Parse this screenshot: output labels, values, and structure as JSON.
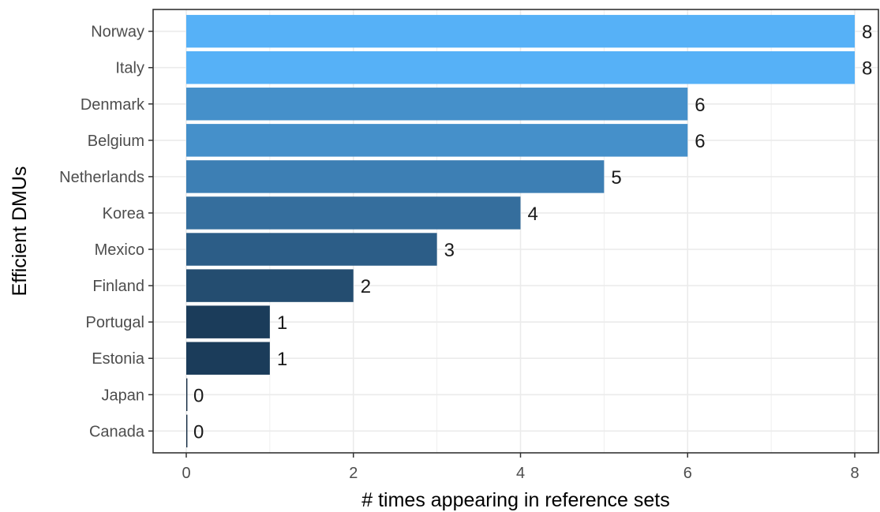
{
  "chart_data": {
    "type": "bar",
    "orientation": "horizontal",
    "categories": [
      "Norway",
      "Italy",
      "Denmark",
      "Belgium",
      "Netherlands",
      "Korea",
      "Mexico",
      "Finland",
      "Portugal",
      "Estonia",
      "Japan",
      "Canada"
    ],
    "values": [
      8,
      8,
      6,
      6,
      5,
      4,
      3,
      2,
      1,
      1,
      0,
      0
    ],
    "data_labels": [
      "8",
      "8",
      "6",
      "6",
      "5",
      "4",
      "3",
      "2",
      "1",
      "1",
      "0",
      "0"
    ],
    "title": "",
    "xlabel": "# times appearing in reference sets",
    "ylabel": "Efficient DMUs",
    "xlim": [
      0,
      8
    ],
    "x_ticks": [
      0,
      2,
      4,
      6,
      8
    ],
    "x_tick_labels": [
      "0",
      "2",
      "4",
      "6",
      "8"
    ],
    "grid": true,
    "legend": "none",
    "fill_gradient": {
      "low_color": "#132B43",
      "high_color": "#56B1F7",
      "low_value": 0,
      "high_value": 8
    }
  }
}
